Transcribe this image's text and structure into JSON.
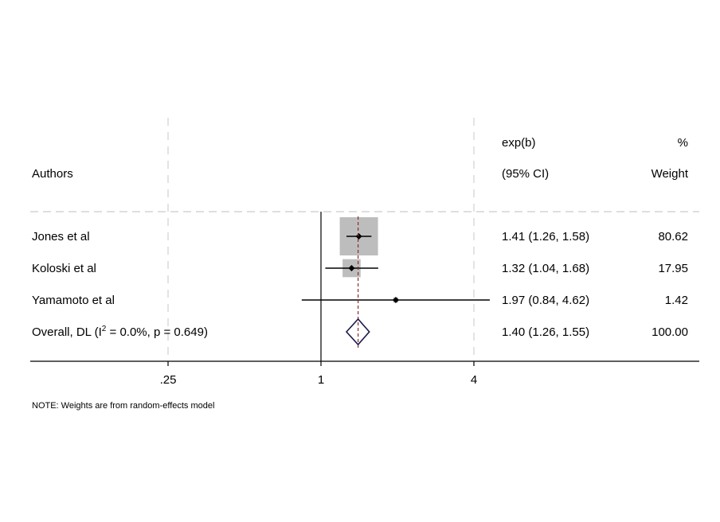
{
  "chart_data": {
    "type": "forest",
    "scale": "log",
    "header": {
      "study_label": "Authors",
      "effect_label_1": "exp(b)",
      "effect_label_2": "(95% CI)",
      "weight_label_1": "%",
      "weight_label_2": "Weight"
    },
    "studies": [
      {
        "name": "Jones et al",
        "estimate": 1.41,
        "ci_low": 1.26,
        "ci_high": 1.58,
        "ci_text": "1.41 (1.26, 1.58)",
        "weight": 80.62,
        "weight_text": "80.62"
      },
      {
        "name": "Koloski et al",
        "estimate": 1.32,
        "ci_low": 1.04,
        "ci_high": 1.68,
        "ci_text": "1.32 (1.04, 1.68)",
        "weight": 17.95,
        "weight_text": "17.95"
      },
      {
        "name": "Yamamoto et al",
        "estimate": 1.97,
        "ci_low": 0.84,
        "ci_high": 4.62,
        "ci_text": "1.97 (0.84, 4.62)",
        "weight": 1.42,
        "weight_text": "1.42"
      }
    ],
    "overall": {
      "name_prefix": "Overall, DL (I",
      "name_sup": "2",
      "name_suffix": " = 0.0%, p = 0.649)",
      "estimate": 1.4,
      "ci_low": 1.26,
      "ci_high": 1.55,
      "ci_text": "1.40 (1.26, 1.55)",
      "weight": 100.0,
      "weight_text": "100.00"
    },
    "x_ticks": [
      {
        "value": 0.25,
        "label": ".25"
      },
      {
        "value": 1,
        "label": "1"
      },
      {
        "value": 4,
        "label": "4"
      }
    ],
    "null_value": 1,
    "grid": true,
    "note": "NOTE: Weights are from random-effects model",
    "colors": {
      "box": "#bdbdbd",
      "ci_line": "#000000",
      "diamond": "#1a1a4e",
      "overall_line": "#8b2c2c",
      "grid": "#e3e3e3",
      "separator": "#cccccc"
    }
  }
}
